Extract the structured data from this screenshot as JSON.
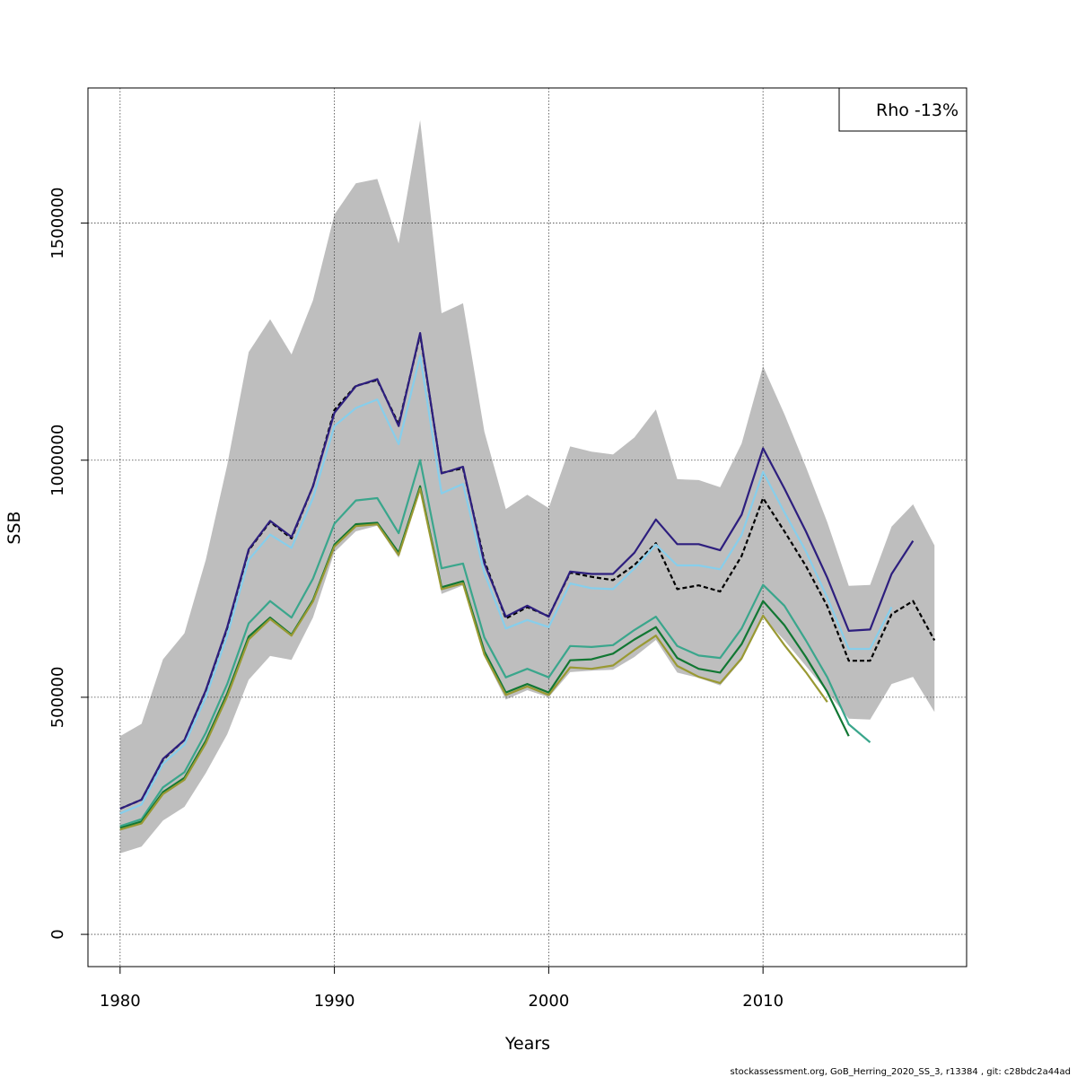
{
  "chart_data": {
    "type": "line",
    "xlabel": "Years",
    "ylabel": "SSB",
    "xlim": [
      1978.5,
      2019.5
    ],
    "ylim": [
      -68000,
      1785000
    ],
    "grid": true,
    "x_ticks": [
      1980,
      1990,
      2000,
      2010
    ],
    "y_ticks": [
      0,
      500000,
      1000000,
      1500000
    ],
    "legend_text": "Rho -13%",
    "legend_position": "top-right",
    "footer": "stockassessment.org, GoB_Herring_2020_SS_3, r13384 , git: c28bdc2a44ad",
    "confidence_band": {
      "color": "#bebebe",
      "x": [
        1980,
        1981,
        1982,
        1983,
        1984,
        1985,
        1986,
        1987,
        1988,
        1989,
        1990,
        1991,
        1992,
        1993,
        1994,
        1995,
        1996,
        1997,
        1998,
        1999,
        2000,
        2001,
        2002,
        2003,
        2004,
        2005,
        2006,
        2007,
        2008,
        2009,
        2010,
        2011,
        2012,
        2013,
        2014,
        2015,
        2016,
        2017,
        2018
      ],
      "upper": [
        418000,
        444000,
        580000,
        635000,
        790000,
        990000,
        1228000,
        1297000,
        1223000,
        1337000,
        1518000,
        1584000,
        1593000,
        1457000,
        1717000,
        1310000,
        1331000,
        1060000,
        897000,
        927000,
        899000,
        1029000,
        1018000,
        1012000,
        1048000,
        1107000,
        960000,
        958000,
        943000,
        1035000,
        1198000,
        1097000,
        986000,
        869000,
        735000,
        737000,
        860000,
        907000,
        820000
      ],
      "lower": [
        171000,
        185000,
        240000,
        269000,
        340000,
        422000,
        537000,
        587000,
        579000,
        668000,
        806000,
        850000,
        862000,
        794000,
        943000,
        718000,
        736000,
        586000,
        495000,
        515000,
        500000,
        553000,
        556000,
        558000,
        585000,
        621000,
        552000,
        541000,
        525000,
        578000,
        668000,
        620000,
        566000,
        511000,
        455000,
        453000,
        528000,
        543000,
        469000
      ]
    },
    "series": [
      {
        "color": "#000000",
        "dashed": true,
        "width": 2.2,
        "x": [
          1980,
          1981,
          1982,
          1983,
          1984,
          1985,
          1986,
          1987,
          1988,
          1989,
          1990,
          1991,
          1992,
          1993,
          1994,
          1995,
          1996,
          1997,
          1998,
          1999,
          2000,
          2001,
          2002,
          2003,
          2004,
          2005,
          2006,
          2007,
          2008,
          2009,
          2010,
          2011,
          2012,
          2013,
          2014,
          2015,
          2016,
          2017,
          2018
        ],
        "values": [
          265000,
          284000,
          368000,
          410000,
          514000,
          646000,
          810000,
          870000,
          835000,
          945000,
          1106000,
          1157000,
          1169000,
          1076000,
          1265000,
          973000,
          983000,
          788000,
          666000,
          690000,
          671000,
          763000,
          754000,
          747000,
          779000,
          825000,
          728000,
          736000,
          723000,
          798000,
          920000,
          850000,
          777000,
          692000,
          577000,
          577000,
          675000,
          703000,
          620000
        ]
      },
      {
        "color": "#2d1e7e",
        "dashed": false,
        "width": 2.2,
        "x": [
          1980,
          1981,
          1982,
          1983,
          1984,
          1985,
          1986,
          1987,
          1988,
          1989,
          1990,
          1991,
          1992,
          1993,
          1994,
          1995,
          1996,
          1997,
          1998,
          1999,
          2000,
          2001,
          2002,
          2003,
          2004,
          2005,
          2006,
          2007,
          2008,
          2009,
          2010,
          2011,
          2012,
          2013,
          2014,
          2015,
          2016,
          2017
        ],
        "values": [
          265000,
          284000,
          370000,
          410000,
          515000,
          648000,
          812000,
          872000,
          838000,
          945000,
          1100000,
          1156000,
          1171000,
          1072000,
          1268000,
          972000,
          986000,
          782000,
          670000,
          693000,
          670000,
          765000,
          760000,
          760000,
          805000,
          875000,
          823000,
          823000,
          810000,
          885000,
          1025000,
          940000,
          850000,
          752000,
          640000,
          643000,
          760000,
          830000
        ]
      },
      {
        "color": "#87ceeb",
        "dashed": false,
        "width": 2.2,
        "x": [
          1980,
          1981,
          1982,
          1983,
          1984,
          1985,
          1986,
          1987,
          1988,
          1989,
          1990,
          1991,
          1992,
          1993,
          1994,
          1995,
          1996,
          1997,
          1998,
          1999,
          2000,
          2001,
          2002,
          2003,
          2004,
          2005,
          2006,
          2007,
          2008,
          2009,
          2010,
          2011,
          2012,
          2013,
          2014,
          2015,
          2016
        ],
        "values": [
          255000,
          274000,
          360000,
          400000,
          500000,
          630000,
          790000,
          843000,
          815000,
          920000,
          1072000,
          1110000,
          1128000,
          1034000,
          1220000,
          930000,
          950000,
          762000,
          645000,
          663000,
          648000,
          740000,
          730000,
          728000,
          772000,
          822000,
          778000,
          778000,
          770000,
          842000,
          975000,
          890000,
          808000,
          710000,
          602000,
          602000,
          690000
        ]
      },
      {
        "color": "#3aa68c",
        "dashed": false,
        "width": 2.2,
        "x": [
          1980,
          1981,
          1982,
          1983,
          1984,
          1985,
          1986,
          1987,
          1988,
          1989,
          1990,
          1991,
          1992,
          1993,
          1994,
          1995,
          1996,
          1997,
          1998,
          1999,
          2000,
          2001,
          2002,
          2003,
          2004,
          2005,
          2006,
          2007,
          2008,
          2009,
          2010,
          2011,
          2012,
          2013,
          2014,
          2015
        ],
        "values": [
          228000,
          243000,
          310000,
          342000,
          425000,
          528000,
          656000,
          703000,
          668000,
          750000,
          866000,
          915000,
          920000,
          846000,
          1000000,
          772000,
          782000,
          626000,
          542000,
          560000,
          542000,
          608000,
          606000,
          610000,
          642000,
          670000,
          608000,
          588000,
          583000,
          645000,
          737000,
          693000,
          620000,
          542000,
          443000,
          405000
        ]
      },
      {
        "color": "#117733",
        "dashed": false,
        "width": 2.2,
        "x": [
          1980,
          1981,
          1982,
          1983,
          1984,
          1985,
          1986,
          1987,
          1988,
          1989,
          1990,
          1991,
          1992,
          1993,
          1994,
          1995,
          1996,
          1997,
          1998,
          1999,
          2000,
          2001,
          2002,
          2003,
          2004,
          2005,
          2006,
          2007,
          2008,
          2009,
          2010,
          2011,
          2012,
          2013,
          2014
        ],
        "values": [
          224000,
          238000,
          300000,
          330000,
          408000,
          508000,
          628000,
          668000,
          632000,
          705000,
          822000,
          865000,
          868000,
          805000,
          945000,
          732000,
          745000,
          597000,
          510000,
          528000,
          510000,
          578000,
          580000,
          592000,
          622000,
          648000,
          583000,
          560000,
          552000,
          612000,
          703000,
          652000,
          585000,
          511000,
          418000
        ]
      },
      {
        "color": "#999933",
        "dashed": false,
        "width": 2.2,
        "x": [
          1980,
          1981,
          1982,
          1983,
          1984,
          1985,
          1986,
          1987,
          1988,
          1989,
          1990,
          1991,
          1992,
          1993,
          1994,
          1995,
          1996,
          1997,
          1998,
          1999,
          2000,
          2001,
          2002,
          2003,
          2004,
          2005,
          2006,
          2007,
          2008,
          2009,
          2010,
          2011,
          2012,
          2013
        ],
        "values": [
          221000,
          234000,
          296000,
          326000,
          403000,
          502000,
          622000,
          665000,
          630000,
          702000,
          818000,
          861000,
          865000,
          800000,
          940000,
          728000,
          740000,
          590000,
          505000,
          523000,
          505000,
          563000,
          560000,
          567000,
          600000,
          630000,
          566000,
          543000,
          530000,
          582000,
          672000,
          610000,
          553000,
          490000
        ]
      }
    ]
  }
}
